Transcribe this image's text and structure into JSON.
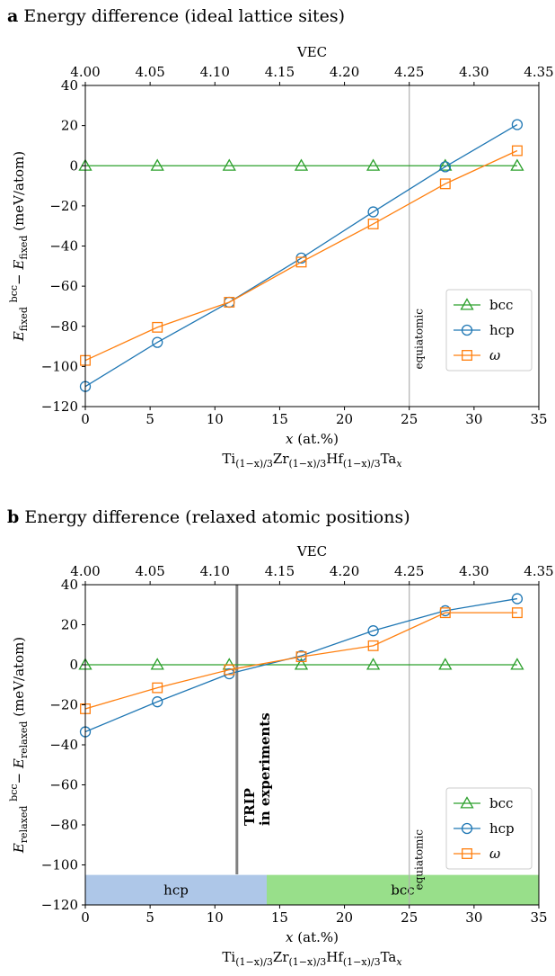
{
  "chart_data": [
    {
      "type": "line",
      "panel_letter": "a",
      "title": "Energy difference (ideal lattice sites)",
      "xlabel": "x (at.%)",
      "xlabel_formula": [
        "Ti",
        "(1−x)/3",
        "Zr",
        "(1−x)/3",
        "Hf",
        "(1−x)/3",
        "Ta",
        "x"
      ],
      "ylabel": [
        "E",
        "fixed",
        "bcc",
        " − E",
        "fixed",
        " (meV/atom)"
      ],
      "top_xlabel": "VEC",
      "xlim": [
        0,
        35
      ],
      "ylim": [
        -120,
        40
      ],
      "xticks": [
        0,
        5,
        10,
        15,
        20,
        25,
        30,
        35
      ],
      "yticks": [
        -120,
        -100,
        -80,
        -60,
        -40,
        -20,
        0,
        20,
        40
      ],
      "top_xlim": [
        4.0,
        4.35
      ],
      "top_xticks": [
        "4.00",
        "4.05",
        "4.10",
        "4.15",
        "4.20",
        "4.25",
        "4.30",
        "4.35"
      ],
      "grid": false,
      "legend_position": "lower-right",
      "series": [
        {
          "name": "bcc",
          "color": "#2ca02c",
          "marker": "triangle",
          "x": [
            0,
            5.56,
            11.11,
            16.67,
            22.22,
            27.78,
            33.33
          ],
          "y": [
            0,
            0,
            0,
            0,
            0,
            0,
            0
          ]
        },
        {
          "name": "hcp",
          "color": "#1f77b4",
          "marker": "circle",
          "x": [
            0,
            5.56,
            11.11,
            16.67,
            22.22,
            27.78,
            33.33
          ],
          "y": [
            -110,
            -88,
            -68,
            -46,
            -23,
            -0.5,
            20.5
          ]
        },
        {
          "name": "ω",
          "color": "#ff7f0e",
          "marker": "square",
          "x": [
            0,
            5.56,
            11.11,
            16.67,
            22.22,
            27.78,
            33.33
          ],
          "y": [
            -97,
            -80.5,
            -68,
            -48,
            -29,
            -9,
            7.5
          ]
        }
      ],
      "annotations": [
        {
          "text": "equiatomic",
          "x": 25,
          "color": "#b0b0b0"
        }
      ],
      "bands": []
    },
    {
      "type": "line",
      "panel_letter": "b",
      "title": "Energy difference (relaxed atomic positions)",
      "xlabel": "x (at.%)",
      "xlabel_formula": [
        "Ti",
        "(1−x)/3",
        "Zr",
        "(1−x)/3",
        "Hf",
        "(1−x)/3",
        "Ta",
        "x"
      ],
      "ylabel": [
        "E",
        "relaxed",
        "bcc",
        " − E",
        "relaxed",
        " (meV/atom)"
      ],
      "top_xlabel": "VEC",
      "xlim": [
        0,
        35
      ],
      "ylim": [
        -120,
        40
      ],
      "xticks": [
        0,
        5,
        10,
        15,
        20,
        25,
        30,
        35
      ],
      "yticks": [
        -120,
        -100,
        -80,
        -60,
        -40,
        -20,
        0,
        20,
        40
      ],
      "top_xlim": [
        4.0,
        4.35
      ],
      "top_xticks": [
        "4.00",
        "4.05",
        "4.10",
        "4.15",
        "4.20",
        "4.25",
        "4.30",
        "4.35"
      ],
      "grid": false,
      "legend_position": "lower-right",
      "series": [
        {
          "name": "bcc",
          "color": "#2ca02c",
          "marker": "triangle",
          "x": [
            0,
            5.56,
            11.11,
            16.67,
            22.22,
            27.78,
            33.33
          ],
          "y": [
            0,
            0,
            0,
            0,
            0,
            0,
            0
          ]
        },
        {
          "name": "hcp",
          "color": "#1f77b4",
          "marker": "circle",
          "x": [
            0,
            5.56,
            11.11,
            16.67,
            22.22,
            27.78,
            33.33
          ],
          "y": [
            -33.5,
            -18.5,
            -4.5,
            4.5,
            17,
            27,
            33
          ]
        },
        {
          "name": "ω",
          "color": "#ff7f0e",
          "marker": "square",
          "x": [
            0,
            5.56,
            11.11,
            16.67,
            22.22,
            27.78,
            33.33
          ],
          "y": [
            -22,
            -11.5,
            -2.5,
            4,
            9.5,
            26,
            26
          ]
        }
      ],
      "annotations": [
        {
          "text": "equiatomic",
          "x": 25,
          "color": "#b0b0b0"
        },
        {
          "text_lines": [
            "TRIP",
            "in experiments"
          ],
          "x": 11.7,
          "color": "#808080"
        }
      ],
      "bands": [
        {
          "label": "hcp",
          "x0": 0,
          "x1": 14,
          "y0": -120,
          "y1": -105,
          "color": "#aec7e8"
        },
        {
          "label": "bcc",
          "x0": 14,
          "x1": 35,
          "y0": -120,
          "y1": -105,
          "color": "#98df8a"
        }
      ]
    }
  ]
}
